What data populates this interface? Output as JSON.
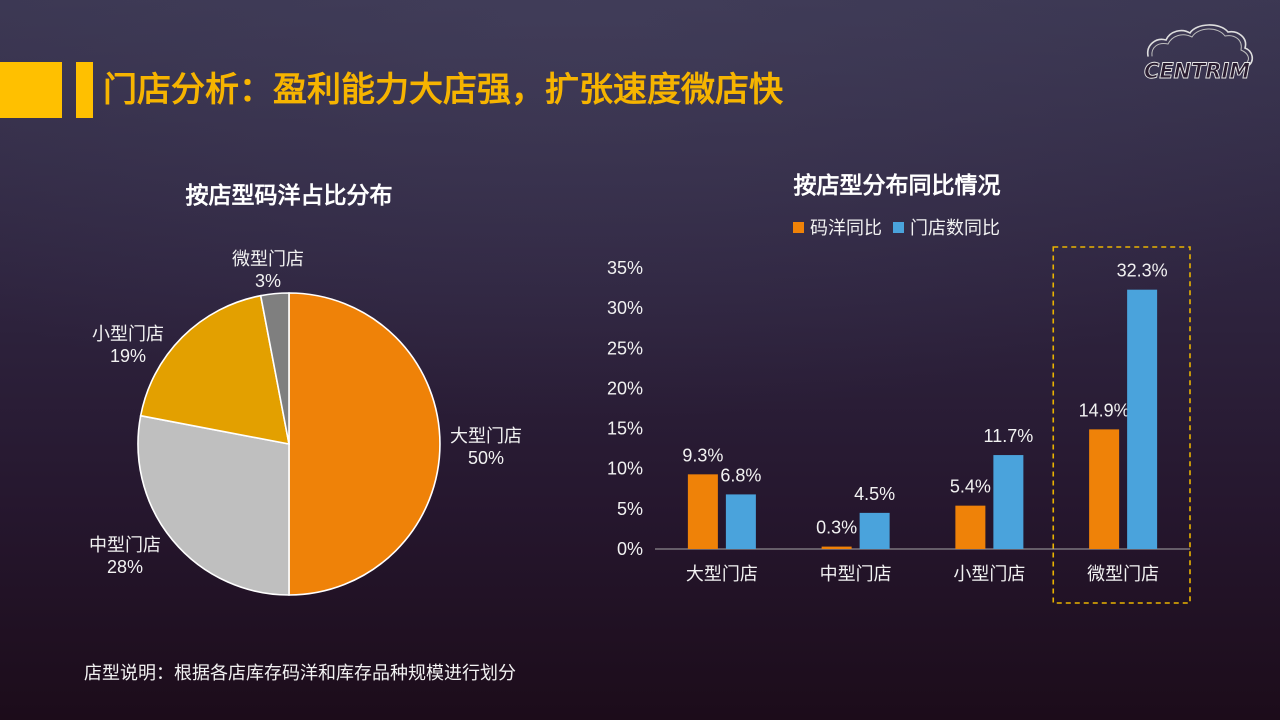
{
  "slide": {
    "title": "门店分析：盈利能力大店强，扩张速度微店快",
    "footnote": "店型说明：根据各店库存码洋和库存品种规模进行划分"
  },
  "logo": {
    "text": "CENTRIM"
  },
  "colors": {
    "title": "#f6b400",
    "accent": "#ffc000",
    "highlight_border": "#e9b300"
  },
  "chart_data": [
    {
      "type": "pie",
      "title": "按店型码洋占比分布",
      "categories": [
        "大型门店",
        "中型门店",
        "小型门店",
        "微型门店"
      ],
      "values": [
        50,
        28,
        19,
        3
      ],
      "labels": [
        "50%",
        "28%",
        "19%",
        "3%"
      ],
      "colors": [
        "#ef8208",
        "#bfbfbf",
        "#e3a000",
        "#7f7f7f"
      ]
    },
    {
      "type": "bar",
      "title": "按店型分布同比情况",
      "categories": [
        "大型门店",
        "中型门店",
        "小型门店",
        "微型门店"
      ],
      "series": [
        {
          "name": "码洋同比",
          "values": [
            9.3,
            0.3,
            5.4,
            14.9
          ],
          "labels": [
            "9.3%",
            "0.3%",
            "5.4%",
            "14.9%"
          ],
          "color": "#ef8208"
        },
        {
          "name": "门店数同比",
          "values": [
            6.8,
            4.5,
            11.7,
            32.3
          ],
          "labels": [
            "6.8%",
            "4.5%",
            "11.7%",
            "32.3%"
          ],
          "color": "#4aa3dc"
        }
      ],
      "ylim": [
        0,
        35
      ],
      "ytick_values": [
        0,
        5,
        10,
        15,
        20,
        25,
        30,
        35
      ],
      "ytick_labels": [
        "0%",
        "5%",
        "10%",
        "15%",
        "20%",
        "25%",
        "30%",
        "35%"
      ],
      "grid": false,
      "legend": "top",
      "highlight_index": 3
    }
  ]
}
